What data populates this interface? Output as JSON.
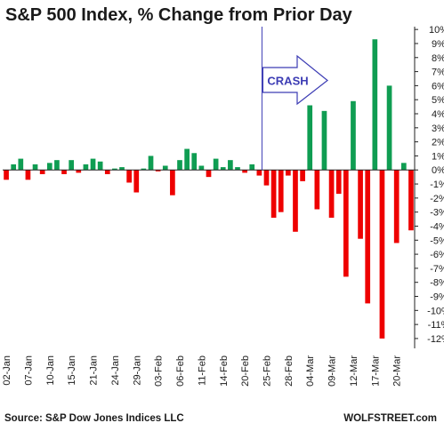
{
  "chart_data": {
    "type": "bar",
    "title": "S&P 500 Index, % Change from Prior Day",
    "y_ticks": [
      "10%",
      "9%",
      "8%",
      "7%",
      "6%",
      "5%",
      "4%",
      "3%",
      "2%",
      "1%",
      "0%",
      "-1%",
      "-2%",
      "-3%",
      "-4%",
      "-5%",
      "-6%",
      "-7%",
      "-8%",
      "-9%",
      "-10%",
      "-11%",
      "-12%"
    ],
    "ylim": [
      -12.7,
      10.2
    ],
    "x_tick_labels": [
      "02-Jan",
      "07-Jan",
      "10-Jan",
      "15-Jan",
      "21-Jan",
      "24-Jan",
      "29-Jan",
      "03-Feb",
      "06-Feb",
      "11-Feb",
      "14-Feb",
      "20-Feb",
      "25-Feb",
      "28-Feb",
      "04-Mar",
      "09-Mar",
      "12-Mar",
      "17-Mar",
      "20-Mar"
    ],
    "values": [
      -0.7,
      0.4,
      0.8,
      -0.7,
      0.4,
      -0.3,
      0.5,
      0.7,
      -0.3,
      0.7,
      -0.2,
      0.4,
      0.8,
      0.6,
      -0.3,
      0.1,
      0.2,
      -0.9,
      -1.6,
      0.1,
      1.0,
      -0.1,
      0.3,
      -1.8,
      0.7,
      1.5,
      1.2,
      0.3,
      -0.5,
      0.8,
      0.2,
      0.7,
      0.2,
      -0.2,
      0.4,
      -0.4,
      -1.1,
      -3.4,
      -3.0,
      -0.4,
      -4.4,
      -0.8,
      4.6,
      -2.8,
      4.2,
      -3.4,
      -1.7,
      -7.6,
      4.9,
      -4.9,
      -9.5,
      9.3,
      -12.0,
      6.0,
      -5.2,
      0.5,
      -4.3
    ],
    "colors": {
      "positive": "#0f9d52",
      "negative": "#ee0000",
      "annotation": "#3c3cb4"
    },
    "annotation": {
      "label": "CRASH"
    },
    "grid": false,
    "source": "Source: S&P Dow Jones Indices LLC",
    "brand": "WOLFSTREET.com"
  }
}
